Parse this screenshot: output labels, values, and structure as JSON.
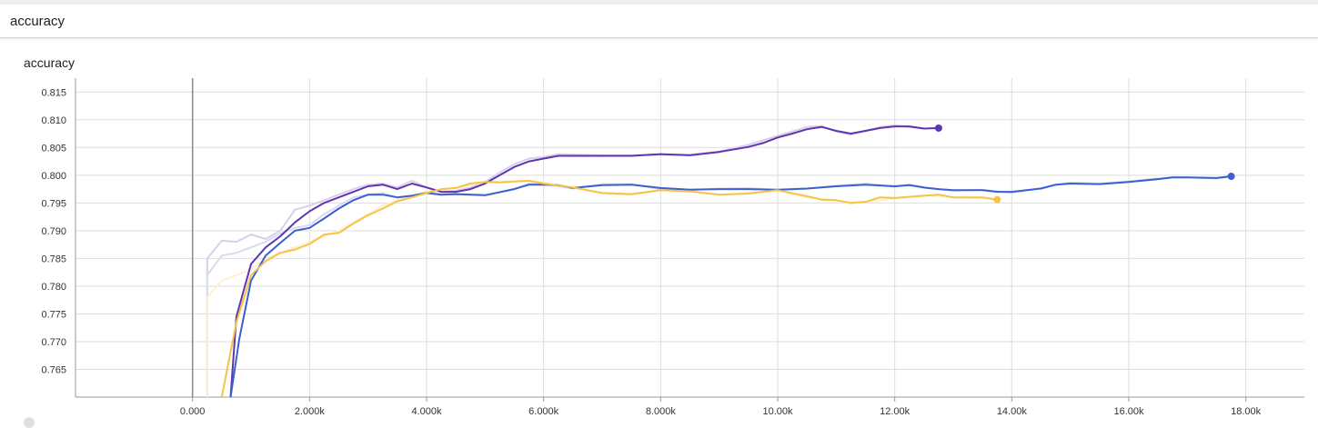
{
  "section": {
    "title": "accuracy"
  },
  "card": {
    "title": "accuracy"
  },
  "chart_data": {
    "type": "line",
    "title": "accuracy",
    "xlabel": "",
    "ylabel": "",
    "xlim": [
      -2000,
      19000
    ],
    "ylim": [
      0.76,
      0.8175
    ],
    "x_ticks": [
      0,
      2000,
      4000,
      6000,
      8000,
      10000,
      12000,
      14000,
      16000,
      18000
    ],
    "x_tick_labels": [
      "0.000",
      "2.000k",
      "4.000k",
      "6.000k",
      "8.000k",
      "10.00k",
      "12.00k",
      "14.00k",
      "16.00k",
      "18.00k"
    ],
    "y_ticks": [
      0.765,
      0.77,
      0.775,
      0.78,
      0.785,
      0.79,
      0.795,
      0.8,
      0.805,
      0.81,
      0.815
    ],
    "y_tick_labels": [
      "0.765",
      "0.770",
      "0.775",
      "0.780",
      "0.785",
      "0.790",
      "0.795",
      "0.800",
      "0.805",
      "0.810",
      "0.815"
    ],
    "grid": true,
    "series": [
      {
        "color": "#5e35b1",
        "raw_color": "#d7d0ea",
        "end_marker": true,
        "points": [
          [
            650,
            0.755
          ],
          [
            750,
            0.7745
          ],
          [
            1000,
            0.784
          ],
          [
            1250,
            0.787
          ],
          [
            1500,
            0.789
          ],
          [
            1750,
            0.7915
          ],
          [
            2000,
            0.7935
          ],
          [
            2250,
            0.795
          ],
          [
            2500,
            0.796
          ],
          [
            2750,
            0.797
          ],
          [
            3000,
            0.798
          ],
          [
            3250,
            0.7983
          ],
          [
            3500,
            0.7975
          ],
          [
            3750,
            0.7985
          ],
          [
            4000,
            0.7978
          ],
          [
            4250,
            0.797
          ],
          [
            4500,
            0.797
          ],
          [
            4750,
            0.7975
          ],
          [
            5000,
            0.7985
          ],
          [
            5250,
            0.8
          ],
          [
            5500,
            0.8015
          ],
          [
            5750,
            0.8025
          ],
          [
            6000,
            0.803
          ],
          [
            6250,
            0.8035
          ],
          [
            7000,
            0.8035
          ],
          [
            7500,
            0.8035
          ],
          [
            8000,
            0.8038
          ],
          [
            8500,
            0.8036
          ],
          [
            9000,
            0.8042
          ],
          [
            9500,
            0.8051
          ],
          [
            9750,
            0.8058
          ],
          [
            10000,
            0.8068
          ],
          [
            10250,
            0.8075
          ],
          [
            10500,
            0.8083
          ],
          [
            10750,
            0.8087
          ],
          [
            11000,
            0.808
          ],
          [
            11250,
            0.8075
          ],
          [
            11500,
            0.808
          ],
          [
            11750,
            0.8085
          ],
          [
            12000,
            0.8088
          ],
          [
            12250,
            0.8088
          ],
          [
            12500,
            0.8084
          ],
          [
            12750,
            0.8085
          ]
        ],
        "raw_points": [
          [
            250,
            0.785
          ],
          [
            500,
            0.7882
          ],
          [
            750,
            0.788
          ],
          [
            1000,
            0.7893
          ],
          [
            1250,
            0.7885
          ],
          [
            1500,
            0.79
          ],
          [
            1750,
            0.7938
          ],
          [
            2000,
            0.7945
          ],
          [
            2250,
            0.7955
          ],
          [
            2500,
            0.7965
          ],
          [
            2750,
            0.7975
          ],
          [
            3000,
            0.7983
          ],
          [
            3250,
            0.7985
          ],
          [
            3500,
            0.7978
          ],
          [
            3750,
            0.799
          ],
          [
            4000,
            0.7978
          ],
          [
            4250,
            0.797
          ],
          [
            4500,
            0.7972
          ],
          [
            4750,
            0.7978
          ],
          [
            5000,
            0.7988
          ],
          [
            5250,
            0.8005
          ],
          [
            5500,
            0.802
          ],
          [
            5750,
            0.803
          ],
          [
            6000,
            0.8033
          ],
          [
            6250,
            0.8038
          ],
          [
            7000,
            0.8036
          ],
          [
            7500,
            0.8036
          ],
          [
            8000,
            0.8037
          ],
          [
            8500,
            0.8037
          ],
          [
            9000,
            0.8043
          ],
          [
            9500,
            0.8055
          ],
          [
            10000,
            0.8071
          ],
          [
            10500,
            0.8087
          ],
          [
            10750,
            0.8089
          ],
          [
            11000,
            0.8079
          ],
          [
            11250,
            0.8073
          ],
          [
            11750,
            0.8087
          ],
          [
            12000,
            0.809
          ],
          [
            12250,
            0.8087
          ],
          [
            12500,
            0.8084
          ],
          [
            12750,
            0.8085
          ]
        ]
      },
      {
        "color": "#3b5fcf",
        "raw_color": "#d6dcf1",
        "end_marker": true,
        "points": [
          [
            650,
            0.755
          ],
          [
            800,
            0.7705
          ],
          [
            1000,
            0.781
          ],
          [
            1250,
            0.7855
          ],
          [
            1500,
            0.7878
          ],
          [
            1750,
            0.79
          ],
          [
            2000,
            0.7905
          ],
          [
            2250,
            0.7922
          ],
          [
            2500,
            0.794
          ],
          [
            2750,
            0.7955
          ],
          [
            3000,
            0.7965
          ],
          [
            3250,
            0.7965
          ],
          [
            3500,
            0.796
          ],
          [
            3750,
            0.7963
          ],
          [
            4000,
            0.7968
          ],
          [
            4250,
            0.7965
          ],
          [
            4500,
            0.7966
          ],
          [
            5000,
            0.7964
          ],
          [
            5500,
            0.7975
          ],
          [
            5750,
            0.7983
          ],
          [
            6000,
            0.7983
          ],
          [
            6250,
            0.7982
          ],
          [
            6500,
            0.7977
          ],
          [
            7000,
            0.7982
          ],
          [
            7500,
            0.7983
          ],
          [
            8000,
            0.7977
          ],
          [
            8500,
            0.7974
          ],
          [
            9000,
            0.7975
          ],
          [
            9500,
            0.7975
          ],
          [
            10000,
            0.7974
          ],
          [
            10500,
            0.7976
          ],
          [
            11000,
            0.798
          ],
          [
            11500,
            0.7983
          ],
          [
            12000,
            0.798
          ],
          [
            12250,
            0.7982
          ],
          [
            12500,
            0.7978
          ],
          [
            12750,
            0.7975
          ],
          [
            13000,
            0.7973
          ],
          [
            13500,
            0.7973
          ],
          [
            13750,
            0.797
          ],
          [
            14000,
            0.797
          ],
          [
            14500,
            0.7976
          ],
          [
            14750,
            0.7983
          ],
          [
            15000,
            0.7985
          ],
          [
            15500,
            0.7984
          ],
          [
            16000,
            0.7988
          ],
          [
            16500,
            0.7993
          ],
          [
            16750,
            0.7996
          ],
          [
            17000,
            0.7996
          ],
          [
            17500,
            0.7995
          ],
          [
            17750,
            0.7998
          ]
        ],
        "raw_points": [
          [
            250,
            0.782
          ],
          [
            500,
            0.7855
          ],
          [
            750,
            0.786
          ],
          [
            1000,
            0.787
          ],
          [
            1250,
            0.788
          ],
          [
            1500,
            0.7895
          ],
          [
            1750,
            0.7905
          ],
          [
            2000,
            0.791
          ],
          [
            2250,
            0.793
          ],
          [
            2500,
            0.7945
          ],
          [
            2750,
            0.796
          ],
          [
            3000,
            0.7965
          ],
          [
            3250,
            0.7968
          ],
          [
            3500,
            0.796
          ],
          [
            3750,
            0.7963
          ],
          [
            4000,
            0.797
          ],
          [
            4250,
            0.7966
          ],
          [
            4500,
            0.7966
          ],
          [
            5000,
            0.7963
          ],
          [
            5500,
            0.7976
          ],
          [
            5750,
            0.7985
          ],
          [
            6000,
            0.7985
          ],
          [
            6250,
            0.798
          ],
          [
            6500,
            0.7976
          ],
          [
            7000,
            0.7984
          ],
          [
            7500,
            0.7984
          ],
          [
            8000,
            0.7975
          ],
          [
            8500,
            0.7973
          ],
          [
            9000,
            0.7976
          ],
          [
            9500,
            0.7977
          ],
          [
            10000,
            0.7973
          ],
          [
            10500,
            0.7976
          ],
          [
            11000,
            0.7981
          ],
          [
            11500,
            0.7985
          ],
          [
            12000,
            0.7979
          ],
          [
            12250,
            0.7983
          ],
          [
            12500,
            0.7977
          ],
          [
            13000,
            0.7972
          ],
          [
            13500,
            0.7974
          ],
          [
            14000,
            0.7968
          ],
          [
            14500,
            0.7977
          ],
          [
            15000,
            0.7987
          ],
          [
            15500,
            0.7985
          ],
          [
            16000,
            0.7989
          ],
          [
            16500,
            0.7994
          ],
          [
            16750,
            0.7997
          ],
          [
            17000,
            0.7996
          ],
          [
            17500,
            0.7994
          ],
          [
            17750,
            0.7998
          ]
        ]
      },
      {
        "color": "#f6c344",
        "raw_color": "#fdf0cf",
        "end_marker": true,
        "points": [
          [
            500,
            0.755
          ],
          [
            750,
            0.7735
          ],
          [
            1000,
            0.782
          ],
          [
            1250,
            0.7845
          ],
          [
            1500,
            0.786
          ],
          [
            1750,
            0.7866
          ],
          [
            2000,
            0.7876
          ],
          [
            2250,
            0.7893
          ],
          [
            2500,
            0.7896
          ],
          [
            2750,
            0.7913
          ],
          [
            3000,
            0.7928
          ],
          [
            3250,
            0.794
          ],
          [
            3500,
            0.7953
          ],
          [
            3750,
            0.796
          ],
          [
            4000,
            0.7968
          ],
          [
            4250,
            0.7975
          ],
          [
            4500,
            0.7977
          ],
          [
            4750,
            0.7985
          ],
          [
            5000,
            0.7988
          ],
          [
            5250,
            0.7987
          ],
          [
            5750,
            0.799
          ],
          [
            6000,
            0.7985
          ],
          [
            6500,
            0.7978
          ],
          [
            7000,
            0.7968
          ],
          [
            7500,
            0.7966
          ],
          [
            8000,
            0.7973
          ],
          [
            8500,
            0.7971
          ],
          [
            9000,
            0.7965
          ],
          [
            9500,
            0.7967
          ],
          [
            10000,
            0.7973
          ],
          [
            10500,
            0.7962
          ],
          [
            10750,
            0.7956
          ],
          [
            11000,
            0.7955
          ],
          [
            11250,
            0.795
          ],
          [
            11500,
            0.7952
          ],
          [
            11750,
            0.796
          ],
          [
            12000,
            0.7959
          ],
          [
            12500,
            0.7963
          ],
          [
            12750,
            0.7965
          ],
          [
            13000,
            0.796
          ],
          [
            13500,
            0.796
          ],
          [
            13750,
            0.7956
          ]
        ],
        "raw_points": [
          [
            250,
            0.778
          ],
          [
            500,
            0.781
          ],
          [
            750,
            0.782
          ],
          [
            1000,
            0.783
          ],
          [
            1250,
            0.785
          ],
          [
            1500,
            0.786
          ],
          [
            1750,
            0.787
          ],
          [
            2000,
            0.788
          ],
          [
            2250,
            0.789
          ],
          [
            2500,
            0.79
          ],
          [
            2750,
            0.7915
          ],
          [
            3000,
            0.793
          ],
          [
            3250,
            0.7945
          ],
          [
            3500,
            0.7955
          ],
          [
            3750,
            0.7962
          ],
          [
            4000,
            0.797
          ],
          [
            4500,
            0.7978
          ],
          [
            5000,
            0.7988
          ],
          [
            5750,
            0.799
          ],
          [
            6000,
            0.7986
          ],
          [
            6500,
            0.7978
          ],
          [
            7000,
            0.7967
          ],
          [
            7500,
            0.7965
          ],
          [
            8000,
            0.7973
          ],
          [
            8500,
            0.797
          ],
          [
            9000,
            0.7965
          ],
          [
            9500,
            0.7968
          ],
          [
            10000,
            0.7973
          ],
          [
            10500,
            0.796
          ],
          [
            11000,
            0.7955
          ],
          [
            11250,
            0.7949
          ],
          [
            11500,
            0.7952
          ],
          [
            12000,
            0.7958
          ],
          [
            12500,
            0.7964
          ],
          [
            13000,
            0.796
          ],
          [
            13500,
            0.7959
          ],
          [
            13750,
            0.7956
          ]
        ]
      }
    ]
  }
}
